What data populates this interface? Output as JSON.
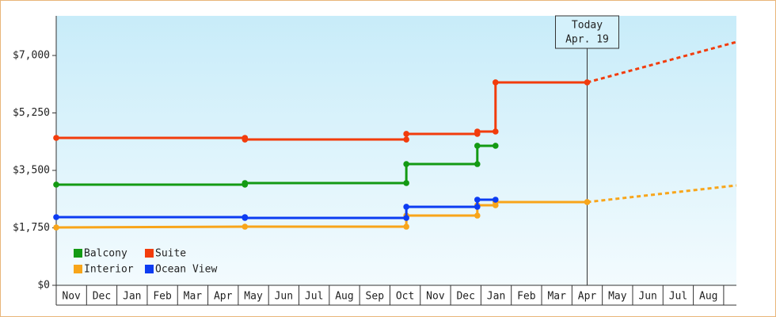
{
  "chart_data": {
    "type": "line",
    "categories": [
      "Nov",
      "Dec",
      "Jan",
      "Feb",
      "Mar",
      "Apr",
      "May",
      "Jun",
      "Jul",
      "Aug",
      "Sep",
      "Oct",
      "Nov",
      "Dec",
      "Jan",
      "Feb",
      "Mar",
      "Apr",
      "May",
      "Jun",
      "Jul",
      "Aug"
    ],
    "xlim": [
      0,
      22.42
    ],
    "ylim": [
      0,
      8207
    ],
    "yticks": [
      {
        "value": 0,
        "label": "$0"
      },
      {
        "value": 1750,
        "label": "$1,750"
      },
      {
        "value": 3500,
        "label": "$3,500"
      },
      {
        "value": 5250,
        "label": "$5,250"
      },
      {
        "value": 7000,
        "label": "$7,000"
      }
    ],
    "annotation": {
      "x": 17.5,
      "lines": [
        "Today",
        "Apr. 19"
      ]
    },
    "series": [
      {
        "name": "Balcony",
        "color": "#139a13",
        "x": [
          0,
          6.22,
          6.22,
          11.54,
          11.54,
          13.88,
          13.88,
          14.48
        ],
        "values": [
          3066,
          3066,
          3114,
          3114,
          3693,
          3693,
          4249,
          4249
        ]
      },
      {
        "name": "Suite",
        "color": "#f23c0c",
        "x": [
          0,
          6.22,
          6.22,
          11.54,
          11.54,
          13.88,
          13.88,
          14.48,
          14.48,
          17.5
        ],
        "values": [
          4490,
          4490,
          4441,
          4441,
          4611,
          4611,
          4683,
          4683,
          6180,
          6180
        ],
        "projection": {
          "x": [
            17.5,
            22.42
          ],
          "values": [
            6180,
            7411
          ]
        }
      },
      {
        "name": "Interior",
        "color": "#f8a51a",
        "x": [
          0,
          6.22,
          11.54,
          11.54,
          13.88,
          13.88,
          14.48,
          14.48,
          17.5
        ],
        "values": [
          1762,
          1786,
          1786,
          2124,
          2124,
          2438,
          2438,
          2535,
          2535
        ],
        "projection": {
          "x": [
            17.5,
            22.42
          ],
          "values": [
            2535,
            3042
          ]
        }
      },
      {
        "name": "Ocean View",
        "color": "#0c3cf2",
        "x": [
          0,
          6.22,
          6.22,
          11.54,
          11.54,
          13.88,
          13.88,
          14.48
        ],
        "values": [
          2076,
          2076,
          2052,
          2052,
          2390,
          2390,
          2607,
          2607
        ]
      }
    ]
  }
}
